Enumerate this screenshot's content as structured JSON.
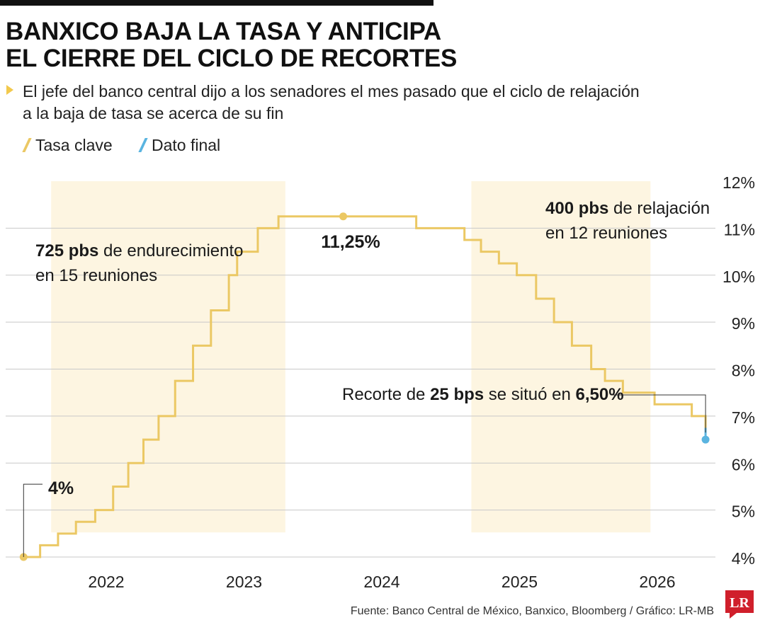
{
  "title_lines": [
    "BANXICO BAJA LA TASA Y ANTICIPA",
    "EL CIERRE DEL CICLO DE RECORTES"
  ],
  "subtitle_lines": [
    "El jefe del banco central dijo a los senadores el mes pasado que el ciclo de relajación",
    "a la baja de tasa se acerca de su fin"
  ],
  "source": "Fuente: Banco Central de México, Banxico, Bloomberg / Gráfico: LR-MB",
  "logo_text": "LR",
  "colors": {
    "line": "#ebc864",
    "final": "#5ab4e0",
    "shade": "#fdf5e1",
    "grid": "#c8c8c8",
    "logo": "#d01f2b"
  },
  "chart_data": {
    "type": "line",
    "step": true,
    "ylim": [
      4,
      12
    ],
    "xlim": [
      2021.4,
      2026.45
    ],
    "y_ticks": [
      4,
      5,
      6,
      7,
      8,
      9,
      10,
      11,
      12
    ],
    "y_tick_labels": [
      "4%",
      "5%",
      "6%",
      "7%",
      "8%",
      "9%",
      "10%",
      "11%",
      "12%"
    ],
    "x_ticks": [
      2022,
      2023,
      2024,
      2025,
      2026
    ],
    "x_tick_labels": [
      "2022",
      "2023",
      "2024",
      "2025",
      "2026"
    ],
    "grid": true,
    "legend": [
      {
        "label": "Tasa clave",
        "color": "#ebc864"
      },
      {
        "label": "Dato final",
        "color": "#5ab4e0"
      }
    ],
    "shaded_periods": [
      [
        2021.6,
        2023.3
      ],
      [
        2024.65,
        2025.95
      ]
    ],
    "series": [
      {
        "name": "Tasa clave",
        "color": "#ebc864",
        "x": [
          2021.4,
          2021.52,
          2021.65,
          2021.78,
          2021.92,
          2022.05,
          2022.16,
          2022.27,
          2022.38,
          2022.5,
          2022.63,
          2022.76,
          2022.89,
          2022.95,
          2023.1,
          2023.25,
          2024.25,
          2024.6,
          2024.72,
          2024.85,
          2024.98,
          2025.12,
          2025.25,
          2025.38,
          2025.52,
          2025.62,
          2025.75,
          2025.98,
          2026.25,
          2026.35
        ],
        "values": [
          4.0,
          4.25,
          4.5,
          4.75,
          5.0,
          5.5,
          6.0,
          6.5,
          7.0,
          7.75,
          8.5,
          9.25,
          10.0,
          10.5,
          11.0,
          11.25,
          11.0,
          10.75,
          10.5,
          10.25,
          10.0,
          9.5,
          9.0,
          8.5,
          8.0,
          7.75,
          7.5,
          7.25,
          7.0,
          6.75
        ]
      },
      {
        "name": "Dato final",
        "color": "#5ab4e0",
        "x": [
          2026.35,
          2026.35
        ],
        "values": [
          6.75,
          6.5
        ]
      }
    ],
    "markers": [
      {
        "x": 2021.4,
        "y": 4.0,
        "color": "#ebc864"
      },
      {
        "x": 2023.72,
        "y": 11.25,
        "color": "#ebc864"
      },
      {
        "x": 2026.35,
        "y": 6.5,
        "color": "#5ab4e0"
      }
    ],
    "annotations": [
      {
        "parts": [
          {
            "text": "725 pbs",
            "bold": true
          },
          {
            "text": " de endurecimiento",
            "bold": false
          }
        ],
        "line2": "en 15 reuniones"
      },
      {
        "parts": [
          {
            "text": "400 pbs",
            "bold": true
          },
          {
            "text": " de relajación",
            "bold": false
          }
        ],
        "line2": "en 12 reuniones"
      },
      {
        "parts": [
          {
            "text": "11,25%",
            "bold": true
          }
        ]
      },
      {
        "parts": [
          {
            "text": "4%",
            "bold": true
          }
        ]
      },
      {
        "parts": [
          {
            "text": "Recorte de ",
            "bold": false
          },
          {
            "text": "25 bps",
            "bold": true
          },
          {
            "text": " se situó en ",
            "bold": false
          },
          {
            "text": "6,50%",
            "bold": true
          }
        ]
      }
    ]
  }
}
